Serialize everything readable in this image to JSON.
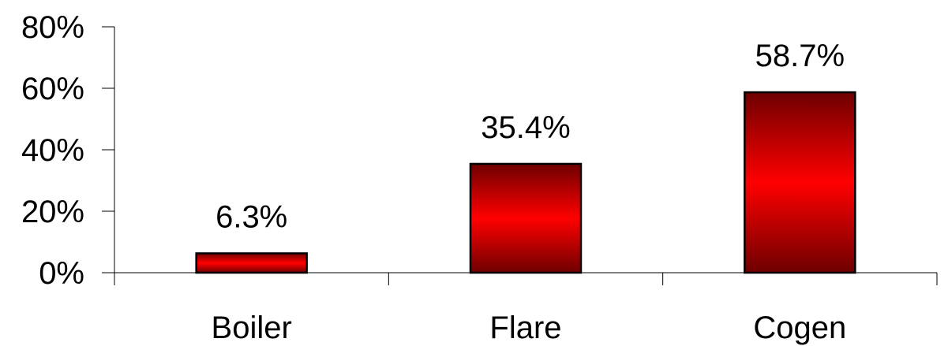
{
  "chart_data": {
    "type": "bar",
    "categories": [
      "Boiler",
      "Flare",
      "Cogen"
    ],
    "values": [
      6.3,
      35.4,
      58.7
    ],
    "data_labels": [
      "6.3%",
      "35.4%",
      "58.7%"
    ],
    "title": "",
    "xlabel": "",
    "ylabel": "",
    "ylim": [
      0,
      80
    ],
    "yticks": [
      0,
      20,
      40,
      60,
      80
    ],
    "ytick_labels": [
      "0%",
      "20%",
      "40%",
      "60%",
      "80%"
    ],
    "grid": false,
    "legend": "none",
    "bar_colors": {
      "edge": "#000000",
      "dark": "#6e0000",
      "light": "#ff0000"
    }
  }
}
